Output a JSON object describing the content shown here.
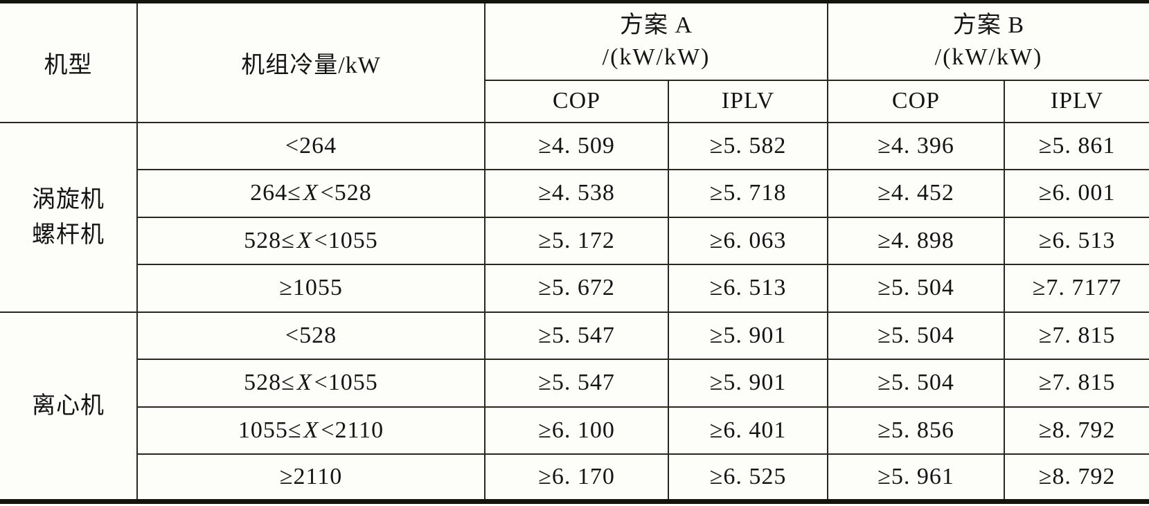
{
  "table": {
    "headers": {
      "machine_type": "机型",
      "cooling_capacity": "机组冷量/kW",
      "scheme_a": {
        "title": "方案 A",
        "unit": "/(kW/kW)"
      },
      "scheme_b": {
        "title": "方案 B",
        "unit": "/(kW/kW)"
      },
      "cop": "COP",
      "iplv": "IPLV"
    },
    "sections": [
      {
        "machine_type_lines": [
          "涡旋机",
          "螺杆机"
        ],
        "rows": [
          {
            "range": "<264",
            "a_cop": "≥4. 509",
            "a_iplv": "≥5. 582",
            "b_cop": "≥4. 396",
            "b_iplv": "≥5. 861"
          },
          {
            "range": "264≤X<528",
            "a_cop": "≥4. 538",
            "a_iplv": "≥5. 718",
            "b_cop": "≥4. 452",
            "b_iplv": "≥6. 001"
          },
          {
            "range": "528≤X<1055",
            "a_cop": "≥5. 172",
            "a_iplv": "≥6. 063",
            "b_cop": "≥4. 898",
            "b_iplv": "≥6. 513"
          },
          {
            "range": "≥1055",
            "a_cop": "≥5. 672",
            "a_iplv": "≥6. 513",
            "b_cop": "≥5. 504",
            "b_iplv": "≥7. 7177"
          }
        ]
      },
      {
        "machine_type_lines": [
          "离心机"
        ],
        "rows": [
          {
            "range": "<528",
            "a_cop": "≥5. 547",
            "a_iplv": "≥5. 901",
            "b_cop": "≥5. 504",
            "b_iplv": "≥7. 815"
          },
          {
            "range": "528≤X<1055",
            "a_cop": "≥5. 547",
            "a_iplv": "≥5. 901",
            "b_cop": "≥5. 504",
            "b_iplv": "≥7. 815"
          },
          {
            "range": "1055≤X<2110",
            "a_cop": "≥6. 100",
            "a_iplv": "≥6. 401",
            "b_cop": "≥5. 856",
            "b_iplv": "≥8. 792"
          },
          {
            "range": "≥2110",
            "a_cop": "≥6. 170",
            "a_iplv": "≥6. 525",
            "b_cop": "≥5. 961",
            "b_iplv": "≥8. 792"
          }
        ]
      }
    ],
    "colors": {
      "border_thin": "#2a281e",
      "border_thick": "#15140c",
      "background": "#fdfdfa",
      "text": "#141414"
    }
  }
}
